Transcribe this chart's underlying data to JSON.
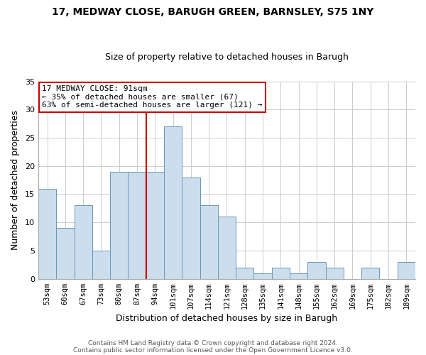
{
  "title": "17, MEDWAY CLOSE, BARUGH GREEN, BARNSLEY, S75 1NY",
  "subtitle": "Size of property relative to detached houses in Barugh",
  "xlabel": "Distribution of detached houses by size in Barugh",
  "ylabel": "Number of detached properties",
  "bar_labels": [
    "53sqm",
    "60sqm",
    "67sqm",
    "73sqm",
    "80sqm",
    "87sqm",
    "94sqm",
    "101sqm",
    "107sqm",
    "114sqm",
    "121sqm",
    "128sqm",
    "135sqm",
    "141sqm",
    "148sqm",
    "155sqm",
    "162sqm",
    "169sqm",
    "175sqm",
    "182sqm",
    "189sqm"
  ],
  "bar_values": [
    16,
    9,
    13,
    5,
    19,
    19,
    19,
    27,
    18,
    13,
    11,
    2,
    1,
    2,
    1,
    3,
    2,
    0,
    2,
    0,
    3
  ],
  "bar_color": "#ccdded",
  "bar_edge_color": "#6699bb",
  "ref_line_idx": 6,
  "annotation_title": "17 MEDWAY CLOSE: 91sqm",
  "annotation_line1": "← 35% of detached houses are smaller (67)",
  "annotation_line2": "63% of semi-detached houses are larger (121) →",
  "box_facecolor": "white",
  "box_edgecolor": "#cc0000",
  "ylim": [
    0,
    35
  ],
  "yticks": [
    0,
    5,
    10,
    15,
    20,
    25,
    30,
    35
  ],
  "footer1": "Contains HM Land Registry data © Crown copyright and database right 2024.",
  "footer2": "Contains public sector information licensed under the Open Government Licence v3.0.",
  "bg_color": "white",
  "grid_color": "#cccccc",
  "title_fontsize": 10,
  "subtitle_fontsize": 9
}
